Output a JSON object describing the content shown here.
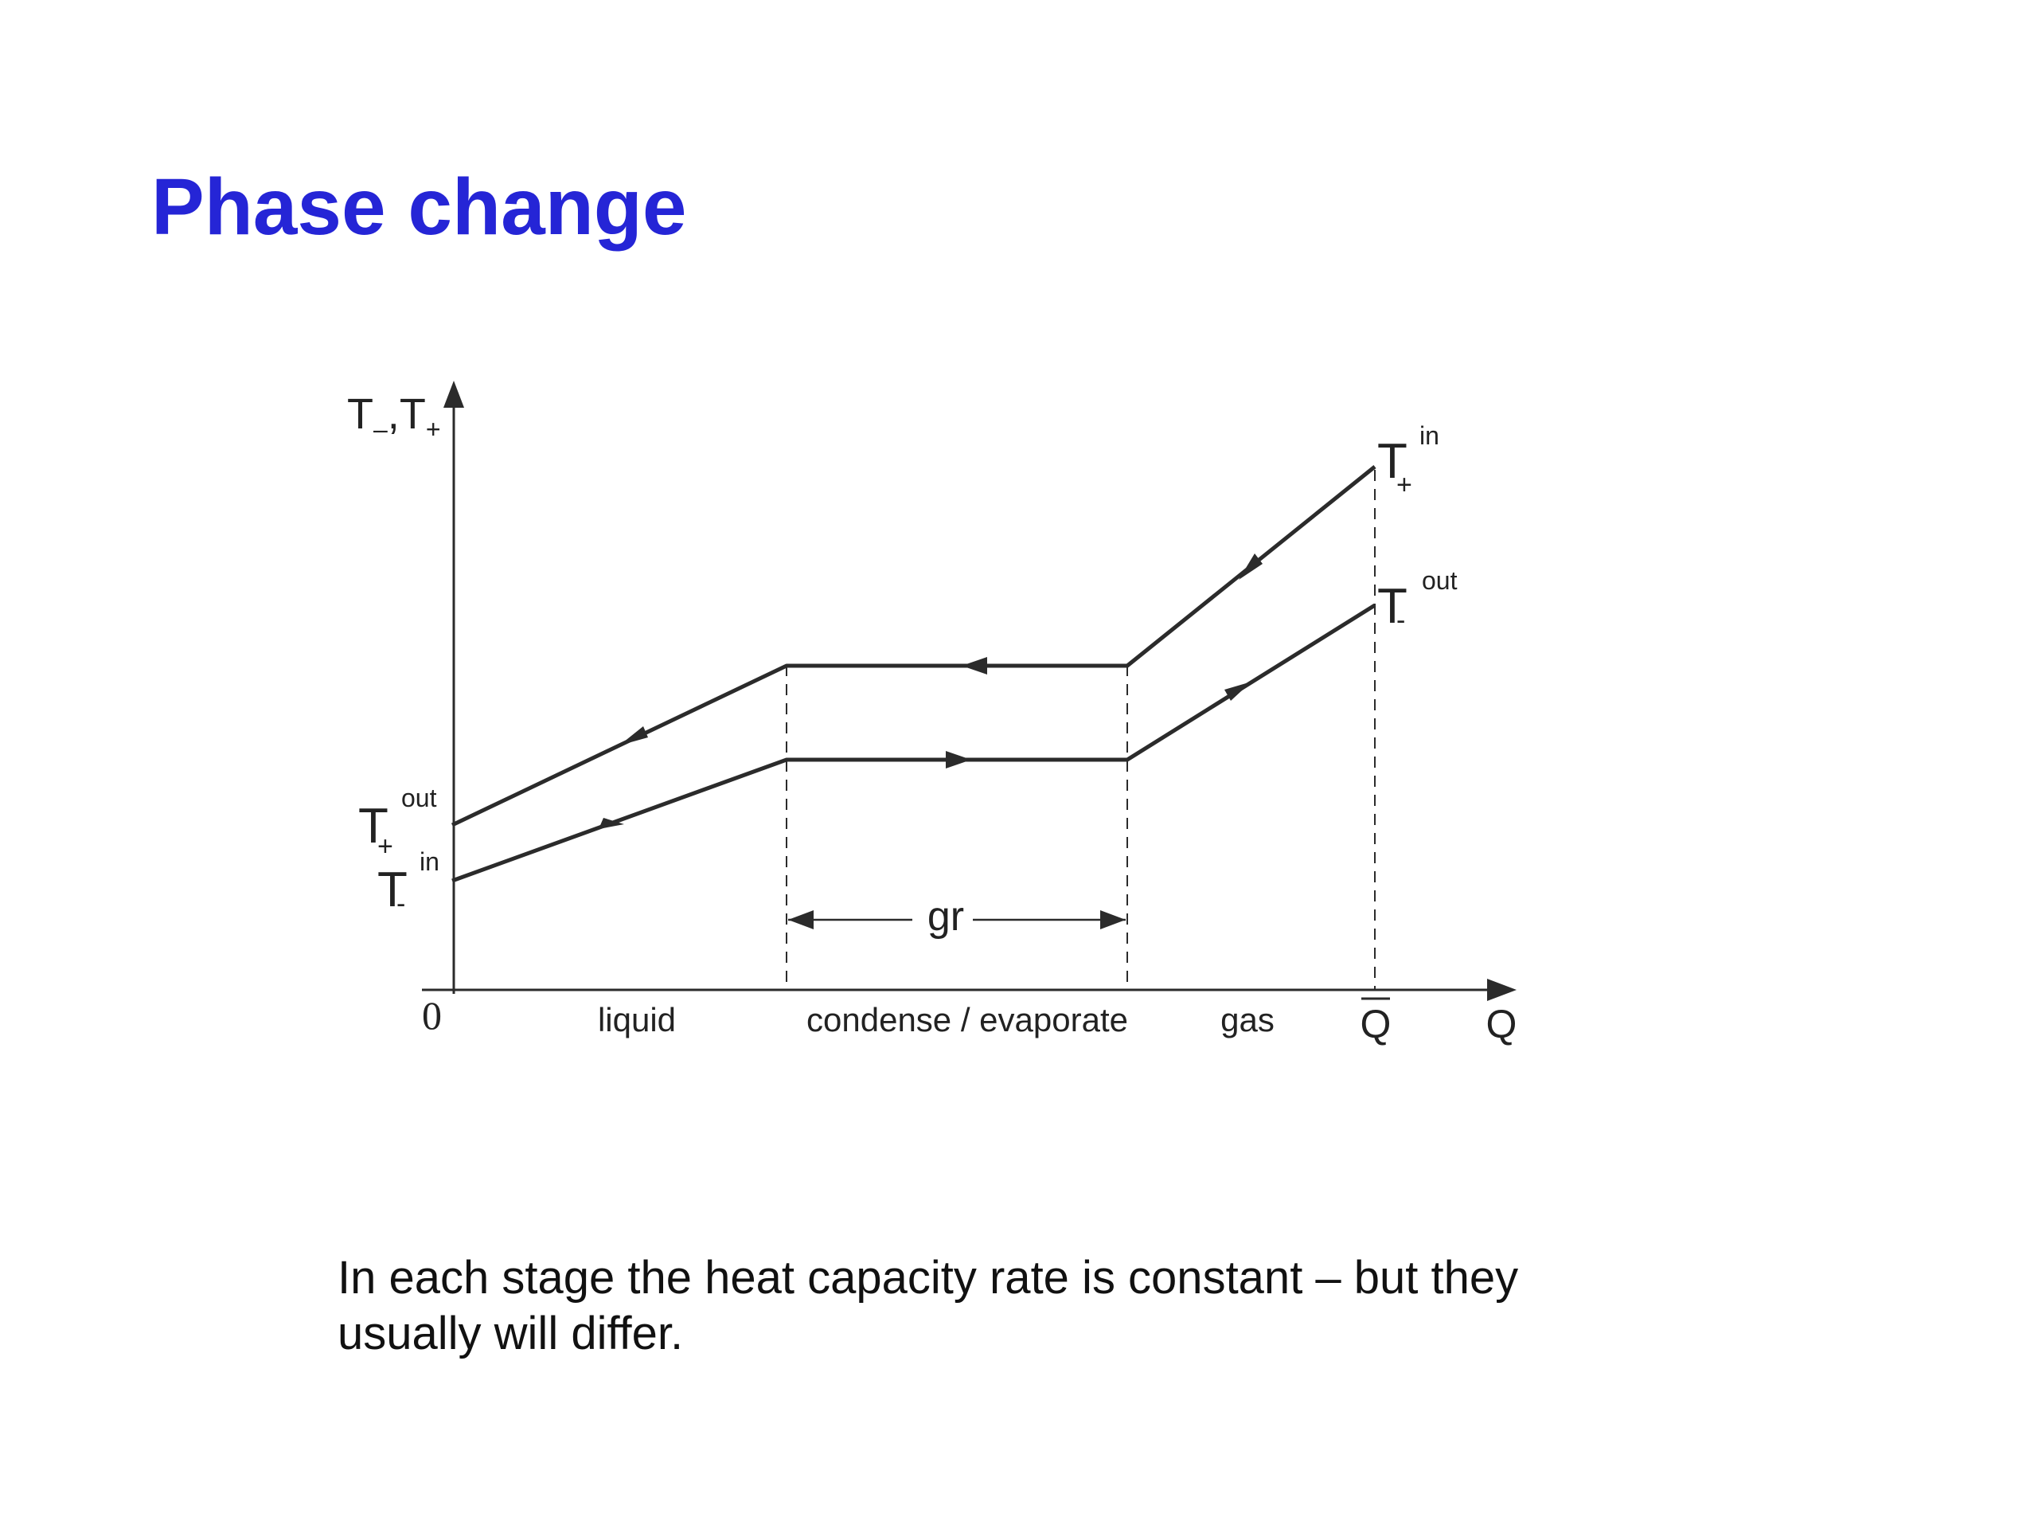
{
  "title": "Phase change",
  "colors": {
    "title": "#2525d6",
    "line": "#2b2b2b"
  },
  "diagram": {
    "y_axis_label": {
      "base1": "T",
      "sub1": "–",
      "sep": ",",
      "base2": "T",
      "sub2": "+"
    },
    "x_axis_label": "Q",
    "origin_label": "0",
    "qbar_label": "Q",
    "regions": [
      "liquid",
      "condense / evaporate",
      "gas"
    ],
    "gap_label": "gr",
    "labels": {
      "t_plus_out": {
        "base": "T",
        "sub": "+",
        "sup": "out"
      },
      "t_minus_in": {
        "base": "T",
        "sub": "-",
        "sup": "in"
      },
      "t_plus_in": {
        "base": "T",
        "sub": "+",
        "sup": "in"
      },
      "t_minus_out": {
        "base": "T",
        "sub": "-",
        "sup": "out"
      }
    }
  },
  "caption": {
    "line1": "In each stage the heat capacity rate is constant – but they",
    "line2": "usually will differ."
  }
}
